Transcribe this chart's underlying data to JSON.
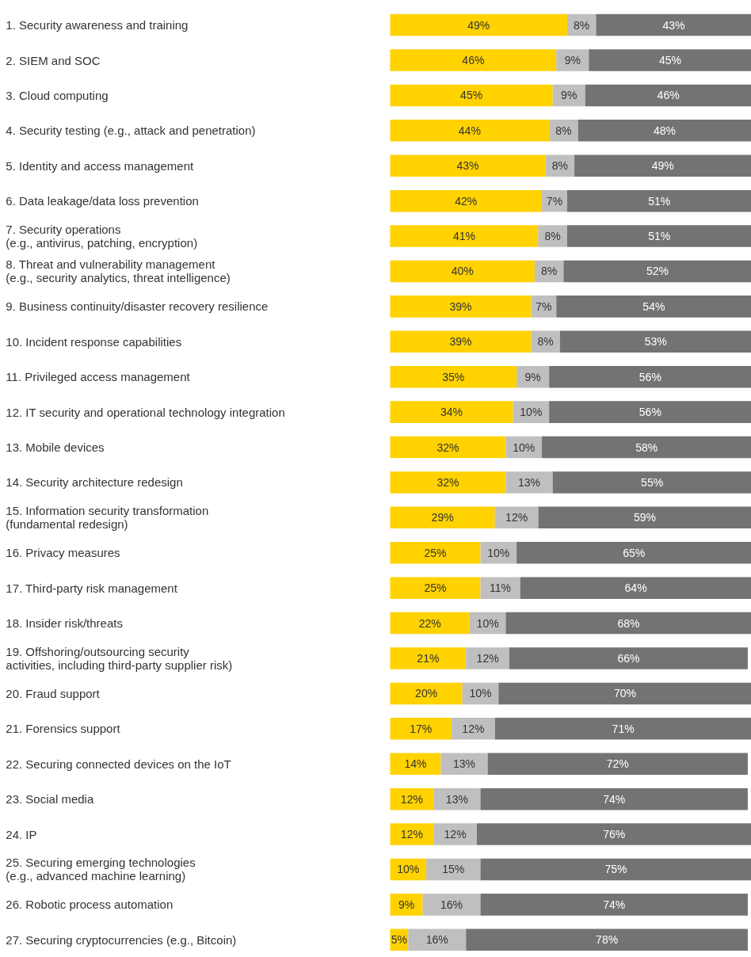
{
  "chart_data": {
    "type": "bar",
    "orientation": "horizontal",
    "stacked": true,
    "categories": [
      "1. Security awareness and training",
      "2. SIEM and SOC",
      "3. Cloud computing",
      "4. Security testing (e.g., attack and penetration)",
      "5. Identity and access management",
      "6. Data leakage/data loss prevention",
      "7. Security operations\n   (e.g., antivirus, patching, encryption)",
      "8. Threat and vulnerability management\n   (e.g., security analytics, threat intelligence)",
      "9. Business continuity/disaster recovery resilience",
      "10. Incident response capabilities",
      "11. Privileged access management",
      "12. IT security and operational technology integration",
      "13. Mobile devices",
      "14. Security architecture redesign",
      "15. Information security transformation\n   (fundamental redesign)",
      "16. Privacy measures",
      "17. Third-party risk management",
      "18. Insider risk/threats",
      "19. Offshoring/outsourcing security\n   activities, including third-party supplier risk)",
      "20. Fraud support",
      "21. Forensics support",
      "22. Securing connected devices on the IoT",
      "23. Social media",
      "24. IP",
      "25. Securing emerging technologies\n   (e.g., advanced machine learning)",
      "26. Robotic process automation",
      "27. Securing cryptocurrencies (e.g., Bitcoin)"
    ],
    "xlim": [
      0,
      100
    ],
    "series": [
      {
        "color": "#ffd200",
        "values": [
          49,
          46,
          45,
          44,
          43,
          42,
          41,
          40,
          39,
          39,
          35,
          34,
          32,
          32,
          29,
          25,
          25,
          22,
          21,
          20,
          17,
          14,
          12,
          12,
          10,
          9,
          5
        ],
        "value_labels": [
          "49%",
          "46%",
          "45%",
          "44%",
          "43%",
          "42%",
          "41%",
          "40%",
          "39%",
          "39%",
          "35%",
          "34%",
          "32%",
          "32%",
          "29%",
          "25%",
          "25%",
          "22%",
          "21%",
          "20%",
          "17%",
          "14%",
          "12%",
          "12%",
          "10%",
          "9%",
          "5%"
        ]
      },
      {
        "color": "#bfbfbf",
        "values": [
          8,
          9,
          9,
          8,
          8,
          7,
          8,
          8,
          7,
          8,
          9,
          10,
          10,
          13,
          12,
          10,
          11,
          10,
          12,
          10,
          12,
          13,
          13,
          12,
          15,
          16,
          16
        ],
        "value_labels": [
          "8%",
          "9%",
          "9%",
          "8%",
          "8%",
          "7%",
          "8%",
          "8%",
          "7%",
          "8%",
          "9%",
          "10%",
          "10%",
          "13%",
          "12%",
          "10%",
          "11%",
          "10%",
          "12%",
          "10%",
          "12%",
          "13%",
          "13%",
          "12%",
          "15%",
          "16%",
          "16%"
        ]
      },
      {
        "color": "#737373",
        "values": [
          43,
          45,
          46,
          48,
          49,
          51,
          51,
          52,
          54,
          53,
          56,
          56,
          58,
          55,
          59,
          65,
          64,
          68,
          66,
          70,
          71,
          72,
          74,
          76,
          75,
          74,
          78
        ],
        "value_labels": [
          "43%",
          "45%",
          "46%",
          "48%",
          "49%",
          "51%",
          "51%",
          "52%",
          "54%",
          "53%",
          "56%",
          "56%",
          "58%",
          "55%",
          "59%",
          "65%",
          "64%",
          "68%",
          "66%",
          "70%",
          "71%",
          "72%",
          "74%",
          "76%",
          "75%",
          "74%",
          "78%"
        ]
      }
    ],
    "grid": false
  }
}
